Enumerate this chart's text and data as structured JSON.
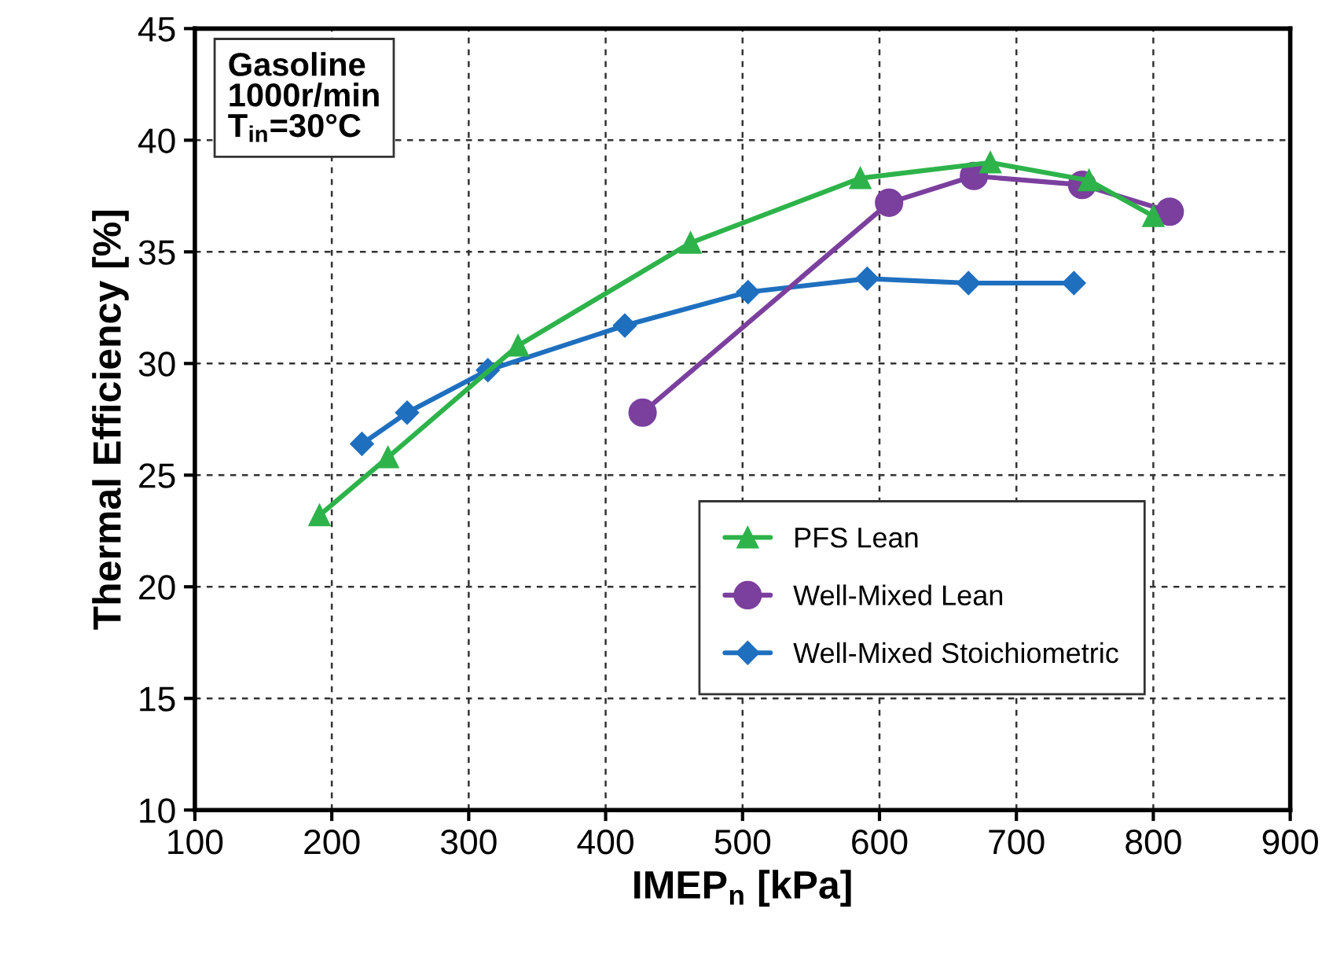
{
  "chart_data": {
    "type": "line",
    "xlabel": "IMEP$_{n}$ [kPa]",
    "ylabel": "Thermal Efficiency [%]",
    "xlim": [
      100,
      900
    ],
    "xticks": [
      100,
      200,
      300,
      400,
      500,
      600,
      700,
      800,
      900
    ],
    "ylim": [
      10,
      45
    ],
    "yticks": [
      10,
      15,
      20,
      25,
      30,
      35,
      40,
      45
    ],
    "grid": true,
    "legend": "bottom right",
    "line_style": "solid",
    "annotations": [
      "Gasoline\n1000r/min\nT$_{in}$=30°C"
    ],
    "series": [
      {
        "name": "PFS Lean",
        "color": "#2db34a",
        "marker": "triangle",
        "x": [
          191,
          241,
          336,
          462,
          586,
          681,
          753,
          800
        ],
        "values": [
          23.2,
          25.8,
          30.8,
          35.4,
          38.3,
          39.0,
          38.2,
          36.6
        ]
      },
      {
        "name": "Well-Mixed Lean",
        "color": "#7b3f9e",
        "marker": "circle",
        "x": [
          427,
          607,
          669,
          748,
          812
        ],
        "values": [
          27.8,
          37.2,
          38.4,
          38.0,
          36.8
        ]
      },
      {
        "name": "Well-Mixed Stoichiometric",
        "color": "#1f6fbf",
        "marker": "diamond",
        "x": [
          222,
          255,
          314,
          414,
          504,
          591,
          665,
          742
        ],
        "values": [
          26.4,
          27.8,
          29.7,
          31.7,
          33.2,
          33.8,
          33.6,
          33.6
        ]
      }
    ]
  }
}
